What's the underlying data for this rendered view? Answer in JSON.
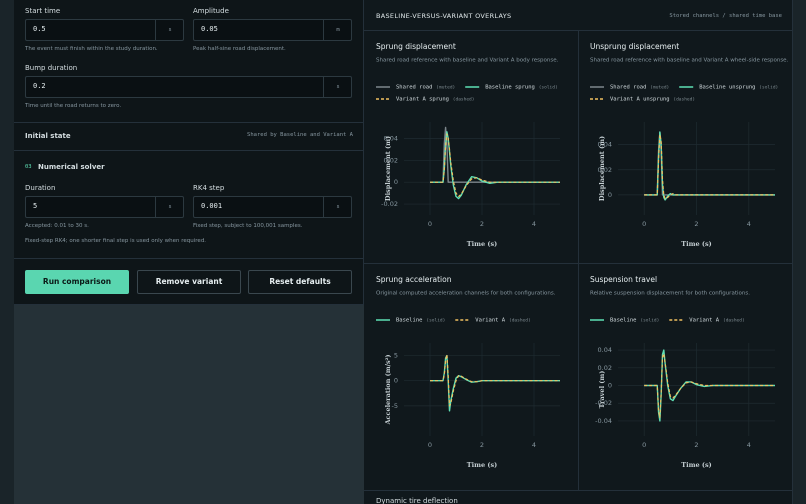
{
  "form": {
    "start_time": {
      "label": "Start time",
      "value": "0.5",
      "unit": "s",
      "help": "The event must finish within the study duration."
    },
    "amplitude": {
      "label": "Amplitude",
      "value": "0.05",
      "unit": "m",
      "help": "Peak half-sine road displacement."
    },
    "bump_duration": {
      "label": "Bump duration",
      "value": "0.2",
      "unit": "s",
      "help": "Time until the road returns to zero."
    },
    "initial_state": {
      "title": "Initial state",
      "note": "Shared by Baseline and Variant A"
    },
    "solver": {
      "index": "03",
      "title": "Numerical solver",
      "duration": {
        "label": "Duration",
        "value": "5",
        "unit": "s",
        "help": "Accepted: 0.01 to 30 s."
      },
      "rk4_step": {
        "label": "RK4 step",
        "value": "0.001",
        "unit": "s",
        "help": "Fixed step, subject to 100,001 samples."
      },
      "note": "Fixed-step RK4; one shorter final step is used only when required."
    },
    "buttons": [
      "Run comparison",
      "Remove variant",
      "Reset defaults"
    ]
  },
  "overlays": {
    "title": "BASELINE-VERSUS-VARIANT OVERLAYS",
    "note": "Stored channels / shared time base",
    "charts": [
      {
        "type": "line",
        "title": "Sprung displacement",
        "subtitle": "Shared road reference with baseline and Variant A body response.",
        "xlabel": "Time (s)",
        "ylabel": "Displacement (m)",
        "xlim": [
          -1,
          5
        ],
        "ylim": [
          -0.03,
          0.055
        ],
        "xticks": [
          0,
          2,
          4
        ],
        "yticks": [
          0.04,
          0.02,
          0,
          -0.02
        ],
        "grid": true,
        "x": [
          0,
          0.5,
          0.55,
          0.6,
          0.65,
          0.7,
          0.75,
          0.8,
          0.9,
          1.0,
          1.1,
          1.2,
          1.4,
          1.6,
          1.8,
          2.0,
          2.3,
          2.6,
          3.0,
          3.5,
          4.0,
          5.0
        ],
        "series": [
          {
            "name": "Shared road",
            "note": "(muted)",
            "color": "#7d878c",
            "dash": false,
            "values": [
              0,
              0,
              0.035,
              0.05,
              0.035,
              0,
              0,
              0,
              0,
              0,
              0,
              0,
              0,
              0,
              0,
              0,
              0,
              0,
              0,
              0,
              0,
              0
            ]
          },
          {
            "name": "Baseline sprung",
            "note": "(solid)",
            "color": "#5ee0b5",
            "dash": false,
            "values": [
              0,
              0,
              0.012,
              0.035,
              0.046,
              0.04,
              0.028,
              0.015,
              -0.003,
              -0.013,
              -0.015,
              -0.012,
              -0.002,
              0.005,
              0.004,
              0.001,
              -0.001,
              0,
              0,
              0,
              0,
              0
            ]
          },
          {
            "name": "Variant A sprung",
            "note": "(dashed)",
            "color": "#f0c060",
            "dash": true,
            "values": [
              0,
              0,
              0.011,
              0.033,
              0.044,
              0.04,
              0.03,
              0.018,
              0.001,
              -0.01,
              -0.013,
              -0.011,
              -0.003,
              0.003,
              0.004,
              0.002,
              0,
              0,
              0,
              0,
              0,
              0
            ]
          }
        ]
      },
      {
        "type": "line",
        "title": "Unsprung displacement",
        "subtitle": "Shared road reference with baseline and Variant A wheel-side response.",
        "xlabel": "Time (s)",
        "ylabel": "Displacement (m)",
        "xlim": [
          -1,
          5
        ],
        "ylim": [
          -0.016,
          0.058
        ],
        "xticks": [
          0,
          2,
          4
        ],
        "yticks": [
          0.04,
          0.02,
          0
        ],
        "grid": true,
        "x": [
          0,
          0.5,
          0.55,
          0.6,
          0.65,
          0.7,
          0.75,
          0.8,
          0.9,
          1.0,
          1.1,
          1.2,
          1.4,
          1.6,
          1.8,
          2.0,
          2.3,
          2.6,
          3.0,
          3.5,
          4.0,
          5.0
        ],
        "series": [
          {
            "name": "Shared road",
            "note": "(muted)",
            "color": "#7d878c",
            "dash": false,
            "values": [
              0,
              0,
              0.035,
              0.05,
              0.035,
              0,
              0,
              0,
              0,
              0,
              0,
              0,
              0,
              0,
              0,
              0,
              0,
              0,
              0,
              0,
              0,
              0
            ]
          },
          {
            "name": "Baseline unsprung",
            "note": "(solid)",
            "color": "#5ee0b5",
            "dash": false,
            "values": [
              0,
              0,
              0.03,
              0.05,
              0.04,
              0.008,
              -0.002,
              -0.004,
              -0.001,
              0.001,
              0,
              0,
              0,
              0,
              0,
              0,
              0,
              0,
              0,
              0,
              0,
              0
            ]
          },
          {
            "name": "Variant A unsprung",
            "note": "(dashed)",
            "color": "#f0c060",
            "dash": true,
            "values": [
              0,
              0,
              0.028,
              0.048,
              0.042,
              0.012,
              0,
              -0.003,
              -0.002,
              0,
              0.001,
              0,
              0,
              0,
              0,
              0,
              0,
              0,
              0,
              0,
              0,
              0
            ]
          }
        ]
      },
      {
        "type": "line",
        "title": "Sprung acceleration",
        "subtitle": "Original computed acceleration channels for both configurations.",
        "xlabel": "Time (s)",
        "ylabel": "Acceleration (m/s²)",
        "xlim": [
          -1,
          5
        ],
        "ylim": [
          -11,
          7.5
        ],
        "xticks": [
          0,
          2,
          4
        ],
        "yticks": [
          5,
          0,
          -5
        ],
        "grid": true,
        "x": [
          0,
          0.5,
          0.55,
          0.6,
          0.65,
          0.7,
          0.75,
          0.8,
          0.9,
          1.0,
          1.1,
          1.2,
          1.4,
          1.6,
          1.8,
          2.0,
          2.3,
          2.6,
          3.0,
          3.5,
          4.0,
          5.0
        ],
        "series": [
          {
            "name": "Baseline",
            "note": "(solid)",
            "color": "#5ee0b5",
            "dash": false,
            "values": [
              0,
              0,
              1.5,
              4.5,
              5,
              0,
              -6,
              -4,
              -1.5,
              0.5,
              1,
              0.8,
              0.2,
              -0.3,
              -0.2,
              0,
              0,
              0,
              0,
              0,
              0,
              0
            ]
          },
          {
            "name": "Variant A",
            "note": "(dashed)",
            "color": "#f0c060",
            "dash": true,
            "values": [
              0,
              0,
              1.2,
              4,
              5.2,
              1,
              -5,
              -4.5,
              -2,
              0,
              1,
              0.9,
              0.3,
              -0.2,
              -0.2,
              0,
              0,
              0,
              0,
              0,
              0,
              0
            ]
          }
        ]
      },
      {
        "type": "line",
        "title": "Suspension travel",
        "subtitle": "Relative suspension displacement for both configurations.",
        "xlabel": "Time (s)",
        "ylabel": "Travel (m)",
        "xlim": [
          -1,
          5
        ],
        "ylim": [
          -0.057,
          0.048
        ],
        "xticks": [
          0,
          2,
          4
        ],
        "yticks": [
          0.04,
          0.02,
          0,
          -0.02,
          -0.04
        ],
        "grid": true,
        "x": [
          0,
          0.5,
          0.55,
          0.6,
          0.65,
          0.7,
          0.75,
          0.8,
          0.9,
          1.0,
          1.1,
          1.2,
          1.4,
          1.6,
          1.8,
          2.0,
          2.3,
          2.6,
          3.0,
          3.5,
          4.0,
          5.0
        ],
        "series": [
          {
            "name": "Baseline",
            "note": "(solid)",
            "color": "#5ee0b5",
            "dash": false,
            "values": [
              0,
              0,
              -0.03,
              -0.04,
              -0.01,
              0.035,
              0.04,
              0.025,
              0,
              -0.015,
              -0.017,
              -0.012,
              -0.003,
              0.004,
              0.004,
              0.001,
              -0.001,
              0,
              0,
              0,
              0,
              0
            ]
          },
          {
            "name": "Variant A",
            "note": "(dashed)",
            "color": "#f0c060",
            "dash": true,
            "values": [
              0,
              0,
              -0.028,
              -0.036,
              -0.008,
              0.032,
              0.036,
              0.026,
              0.003,
              -0.012,
              -0.014,
              -0.011,
              -0.003,
              0.003,
              0.004,
              0.002,
              0,
              0,
              0,
              0,
              0,
              0
            ]
          }
        ]
      }
    ],
    "next_chart_title": "Dynamic tire deflection"
  }
}
